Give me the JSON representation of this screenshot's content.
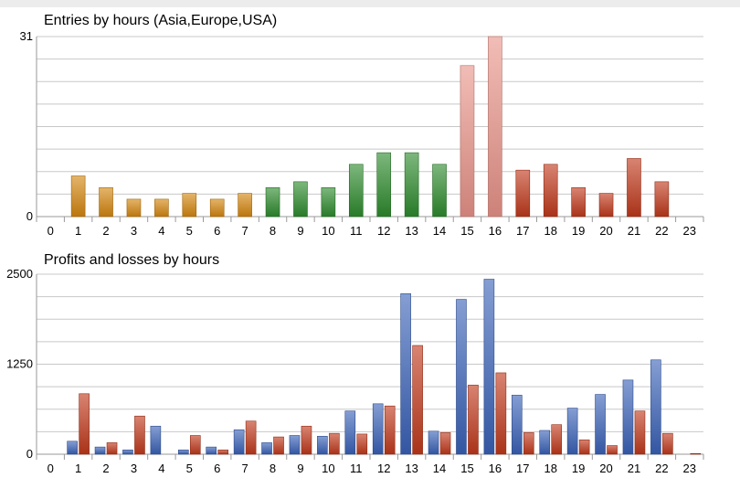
{
  "chart_data": [
    {
      "type": "bar",
      "title": "Entries by hours (Asia,Europe,USA)",
      "xlabel": "",
      "ylabel": "",
      "categories": [
        "0",
        "1",
        "2",
        "3",
        "4",
        "5",
        "6",
        "7",
        "8",
        "9",
        "10",
        "11",
        "12",
        "13",
        "14",
        "15",
        "16",
        "17",
        "18",
        "19",
        "20",
        "21",
        "22",
        "23"
      ],
      "values": [
        0,
        7,
        5,
        3,
        3,
        4,
        3,
        4,
        5,
        6,
        5,
        9,
        11,
        11,
        9,
        26,
        31,
        8,
        9,
        5,
        4,
        10,
        6,
        0
      ],
      "region_colors": [
        "#d4860f",
        "#d4860f",
        "#d4860f",
        "#d4860f",
        "#d4860f",
        "#d4860f",
        "#d4860f",
        "#d4860f",
        "#2e8b2e",
        "#2e8b2e",
        "#2e8b2e",
        "#2e8b2e",
        "#2e8b2e",
        "#2e8b2e",
        "#2e8b2e",
        "#e9948a",
        "#e9948a",
        "#c0391b",
        "#c0391b",
        "#c0391b",
        "#c0391b",
        "#c0391b",
        "#c0391b",
        "#c0391b"
      ],
      "y_tick_labels": [
        "0",
        "31"
      ],
      "ylim": [
        0,
        31
      ],
      "grid": true
    },
    {
      "type": "bar",
      "title": "Profits and losses by hours",
      "xlabel": "",
      "ylabel": "",
      "categories": [
        "0",
        "1",
        "2",
        "3",
        "4",
        "5",
        "6",
        "7",
        "8",
        "9",
        "10",
        "11",
        "12",
        "13",
        "14",
        "15",
        "16",
        "17",
        "18",
        "19",
        "20",
        "21",
        "22",
        "23"
      ],
      "series": [
        {
          "color": "#3a62b8",
          "values": [
            0,
            180,
            100,
            60,
            390,
            60,
            100,
            340,
            160,
            260,
            250,
            600,
            700,
            2230,
            320,
            2150,
            2430,
            820,
            330,
            640,
            830,
            1030,
            1310,
            0
          ]
        },
        {
          "color": "#c0391b",
          "values": [
            0,
            840,
            160,
            530,
            0,
            260,
            60,
            460,
            240,
            390,
            290,
            280,
            670,
            1510,
            300,
            960,
            1130,
            300,
            410,
            200,
            120,
            600,
            290,
            10
          ]
        }
      ],
      "y_tick_labels": [
        "0",
        "1250",
        "2500"
      ],
      "ylim": [
        0,
        2500
      ],
      "grid": true
    }
  ]
}
